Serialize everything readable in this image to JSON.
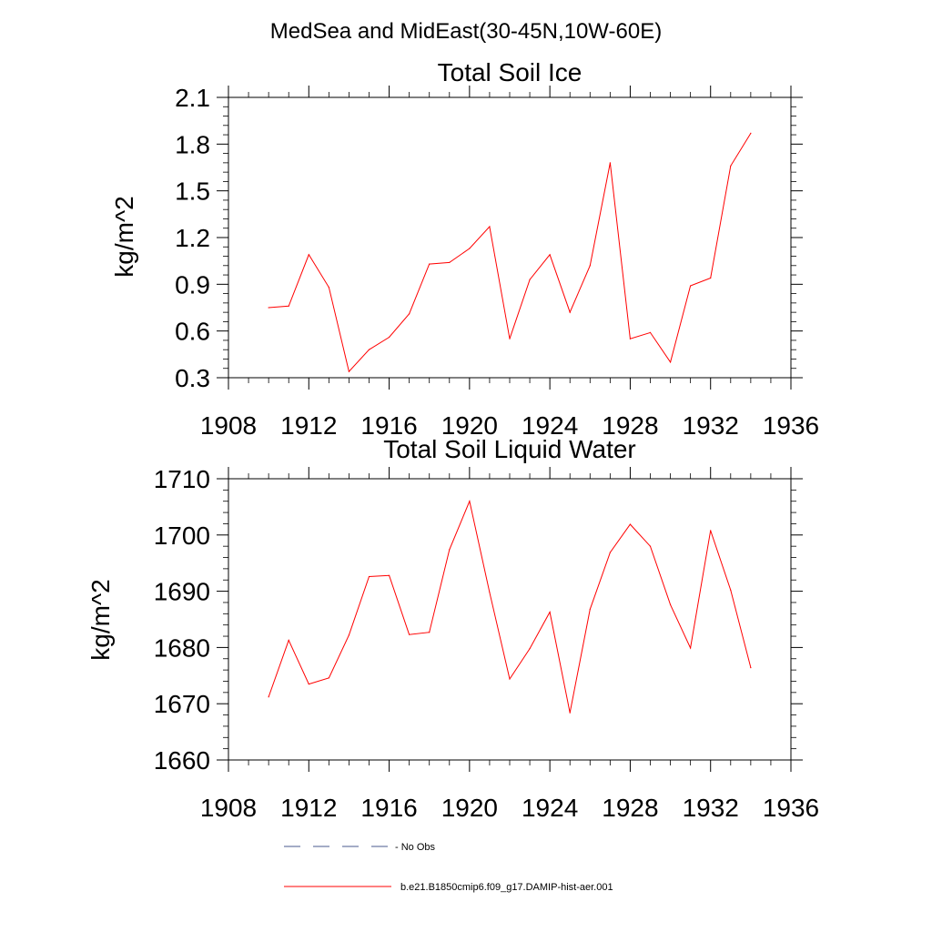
{
  "suptitle": "MedSea and MidEast(30-45N,10W-60E)",
  "colors": {
    "series": "#ff0000",
    "no_obs": "#4a5a8c"
  },
  "legend": {
    "no_obs_label": "- No Obs",
    "series_label": "b.e21.B1850cmip6.f09_g17.DAMIP-hist-aer.001"
  },
  "chart_data": [
    {
      "type": "line",
      "title": "Total Soil Ice",
      "xlabel": "",
      "ylabel": "kg/m^2",
      "xlim": [
        1908,
        1936
      ],
      "ylim": [
        0.3,
        2.1
      ],
      "xticks": [
        1908,
        1912,
        1916,
        1920,
        1924,
        1928,
        1932,
        1936
      ],
      "xtick_labels": [
        "1908",
        "1912",
        "1916",
        "1920",
        "1924",
        "1928",
        "1932",
        "1936"
      ],
      "yticks": [
        0.3,
        0.6,
        0.9,
        1.2,
        1.5,
        1.8,
        2.1
      ],
      "ytick_labels": [
        "0.3",
        "0.6",
        "0.9",
        "1.2",
        "1.5",
        "1.8",
        "2.1"
      ],
      "series": [
        {
          "name": "b.e21.B1850cmip6.f09_g17.DAMIP-hist-aer.001",
          "x": [
            1910,
            1911,
            1912,
            1913,
            1914,
            1915,
            1916,
            1917,
            1918,
            1919,
            1920,
            1921,
            1922,
            1923,
            1924,
            1925,
            1926,
            1927,
            1928,
            1929,
            1930,
            1931,
            1932,
            1933,
            1934
          ],
          "y": [
            0.75,
            0.76,
            1.09,
            0.88,
            0.34,
            0.48,
            0.56,
            0.71,
            1.03,
            1.04,
            1.13,
            1.27,
            0.55,
            0.93,
            1.09,
            0.72,
            1.02,
            1.68,
            0.55,
            0.59,
            0.4,
            0.89,
            0.94,
            1.66,
            1.87
          ]
        }
      ]
    },
    {
      "type": "line",
      "title": "Total Soil Liquid Water",
      "xlabel": "",
      "ylabel": "kg/m^2",
      "xlim": [
        1908,
        1936
      ],
      "ylim": [
        1660,
        1710
      ],
      "xticks": [
        1908,
        1912,
        1916,
        1920,
        1924,
        1928,
        1932,
        1936
      ],
      "xtick_labels": [
        "1908",
        "1912",
        "1916",
        "1920",
        "1924",
        "1928",
        "1932",
        "1936"
      ],
      "yticks": [
        1660,
        1670,
        1680,
        1690,
        1700,
        1710
      ],
      "ytick_labels": [
        "1660",
        "1670",
        "1680",
        "1690",
        "1700",
        "1710"
      ],
      "series": [
        {
          "name": "b.e21.B1850cmip6.f09_g17.DAMIP-hist-aer.001",
          "x": [
            1910,
            1911,
            1912,
            1913,
            1914,
            1915,
            1916,
            1917,
            1918,
            1919,
            1920,
            1921,
            1922,
            1923,
            1924,
            1925,
            1926,
            1927,
            1928,
            1929,
            1930,
            1931,
            1932,
            1933,
            1934
          ],
          "y": [
            1671.2,
            1681.3,
            1673.5,
            1674.6,
            1682.2,
            1692.6,
            1692.8,
            1682.3,
            1682.7,
            1697.4,
            1706.0,
            1689.8,
            1674.4,
            1679.8,
            1686.3,
            1668.4,
            1686.8,
            1696.9,
            1701.9,
            1698.0,
            1687.6,
            1679.9,
            1700.8,
            1690.2,
            1676.4
          ]
        }
      ]
    }
  ]
}
